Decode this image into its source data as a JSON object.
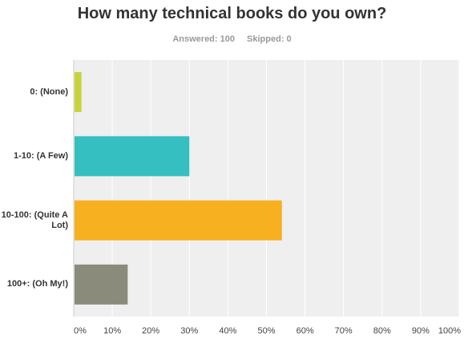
{
  "header": {
    "title": "How many technical books do you own?",
    "answered": "Answered: 100",
    "skipped": "Skipped: 0"
  },
  "chart_data": {
    "type": "bar",
    "orientation": "horizontal",
    "title": "How many technical books do you own?",
    "categories": [
      "0: (None)",
      "1-10: (A Few)",
      "10-100: (Quite A Lot)",
      "100+: (Oh My!)"
    ],
    "values": [
      2,
      30,
      54,
      14
    ],
    "colors": [
      "#c6d43a",
      "#35bfc1",
      "#f7b020",
      "#8b8b7b"
    ],
    "xlim": [
      0,
      100
    ],
    "tick_labels": [
      "0%",
      "10%",
      "20%",
      "30%",
      "40%",
      "50%",
      "60%",
      "70%",
      "80%",
      "90%",
      "100%"
    ],
    "grid": true,
    "plot_background": "#efefef"
  }
}
